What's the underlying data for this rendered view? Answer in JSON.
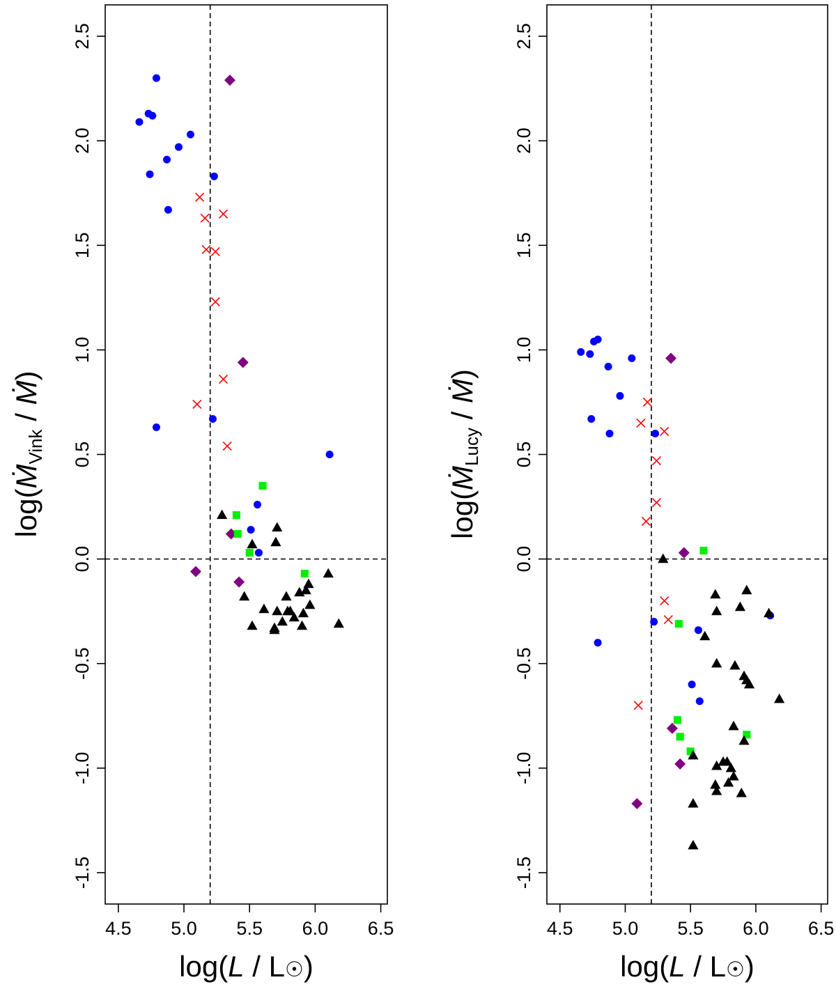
{
  "colors": {
    "blue_circle": "#0000ff",
    "red_cross": "#ff0000",
    "purple_diamond": "#800080",
    "green_square": "#00ee00",
    "black_triangle": "#000000"
  },
  "chart_data": [
    {
      "type": "scatter",
      "title": "",
      "xlabel": "log(L / L☉)",
      "ylabel": "log(Ṁ_Vink / Ṁ)",
      "ylabel_parts": {
        "prefix": "log(",
        "mdot": "M",
        "sub": "Vink",
        "mid": " / ",
        "suffix": ")"
      },
      "xlabel_parts": {
        "prefix": "log(",
        "L": "L",
        "mid": " / L",
        "suffix": ")"
      },
      "xlim": [
        4.4,
        6.55
      ],
      "ylim": [
        -1.65,
        2.65
      ],
      "xticks": [
        "4.5",
        "5.0",
        "5.5",
        "6.0",
        "6.5"
      ],
      "yticks": [
        "-1.5",
        "-1.0",
        "-0.5",
        "0.0",
        "0.5",
        "1.0",
        "1.5",
        "2.0",
        "2.5"
      ],
      "reference_lines": {
        "vertical_x": 5.2,
        "horizontal_y": 0.0
      },
      "grid": false,
      "series": [
        {
          "marker": "circle",
          "color": "#0000ff",
          "points": [
            [
              4.66,
              2.09
            ],
            [
              4.73,
              2.13
            ],
            [
              4.76,
              2.12
            ],
            [
              4.79,
              2.3
            ],
            [
              4.74,
              1.84
            ],
            [
              4.87,
              1.91
            ],
            [
              4.96,
              1.97
            ],
            [
              5.05,
              2.03
            ],
            [
              5.23,
              1.83
            ],
            [
              4.88,
              1.67
            ],
            [
              4.79,
              0.63
            ],
            [
              5.22,
              0.67
            ],
            [
              6.11,
              0.5
            ],
            [
              5.56,
              0.26
            ],
            [
              5.51,
              0.14
            ],
            [
              5.57,
              0.03
            ]
          ]
        },
        {
          "marker": "cross",
          "color": "#ff0000",
          "points": [
            [
              5.12,
              1.73
            ],
            [
              5.16,
              1.63
            ],
            [
              5.3,
              1.65
            ],
            [
              5.17,
              1.48
            ],
            [
              5.24,
              1.47
            ],
            [
              5.24,
              1.23
            ],
            [
              5.3,
              0.86
            ],
            [
              5.1,
              0.74
            ],
            [
              5.33,
              0.54
            ]
          ]
        },
        {
          "marker": "diamond",
          "color": "#800080",
          "points": [
            [
              5.35,
              2.29
            ],
            [
              5.45,
              0.94
            ],
            [
              5.36,
              0.12
            ],
            [
              5.09,
              -0.06
            ],
            [
              5.42,
              -0.11
            ]
          ]
        },
        {
          "marker": "square",
          "color": "#00ee00",
          "points": [
            [
              5.6,
              0.35
            ],
            [
              5.4,
              0.21
            ],
            [
              5.41,
              0.12
            ],
            [
              5.5,
              0.03
            ],
            [
              5.92,
              -0.07
            ]
          ]
        },
        {
          "marker": "triangle",
          "color": "#000000",
          "points": [
            [
              5.29,
              0.21
            ],
            [
              5.71,
              0.15
            ],
            [
              5.52,
              0.07
            ],
            [
              5.7,
              0.08
            ],
            [
              5.46,
              -0.18
            ],
            [
              5.52,
              -0.32
            ],
            [
              5.61,
              -0.24
            ],
            [
              5.69,
              -0.33
            ],
            [
              5.69,
              -0.34
            ],
            [
              5.71,
              -0.25
            ],
            [
              5.75,
              -0.3
            ],
            [
              5.78,
              -0.18
            ],
            [
              5.79,
              -0.25
            ],
            [
              5.81,
              -0.25
            ],
            [
              5.84,
              -0.28
            ],
            [
              5.88,
              -0.16
            ],
            [
              5.9,
              -0.32
            ],
            [
              5.91,
              -0.26
            ],
            [
              5.93,
              -0.15
            ],
            [
              5.95,
              -0.12
            ],
            [
              5.96,
              -0.22
            ],
            [
              6.1,
              -0.07
            ],
            [
              6.18,
              -0.31
            ]
          ]
        }
      ]
    },
    {
      "type": "scatter",
      "title": "",
      "xlabel": "log(L / L☉)",
      "ylabel": "log(Ṁ_Lucy / Ṁ)",
      "ylabel_parts": {
        "prefix": "log(",
        "mdot": "M",
        "sub": "Lucy",
        "mid": " / ",
        "suffix": ")"
      },
      "xlabel_parts": {
        "prefix": "log(",
        "L": "L",
        "mid": " / L",
        "suffix": ")"
      },
      "xlim": [
        4.4,
        6.55
      ],
      "ylim": [
        -1.65,
        2.65
      ],
      "xticks": [
        "4.5",
        "5.0",
        "5.5",
        "6.0",
        "6.5"
      ],
      "yticks": [
        "-1.5",
        "-1.0",
        "-0.5",
        "0.0",
        "0.5",
        "1.0",
        "1.5",
        "2.0",
        "2.5"
      ],
      "reference_lines": {
        "vertical_x": 5.2,
        "horizontal_y": 0.0
      },
      "grid": false,
      "series": [
        {
          "marker": "circle",
          "color": "#0000ff",
          "points": [
            [
              4.66,
              0.99
            ],
            [
              4.73,
              0.98
            ],
            [
              4.76,
              1.04
            ],
            [
              4.79,
              1.05
            ],
            [
              4.74,
              0.67
            ],
            [
              4.87,
              0.92
            ],
            [
              4.96,
              0.78
            ],
            [
              5.05,
              0.96
            ],
            [
              4.88,
              0.6
            ],
            [
              5.23,
              0.6
            ],
            [
              5.22,
              -0.3
            ],
            [
              4.79,
              -0.4
            ],
            [
              5.56,
              -0.34
            ],
            [
              5.51,
              -0.6
            ],
            [
              5.57,
              -0.68
            ],
            [
              6.11,
              -0.27
            ]
          ]
        },
        {
          "marker": "cross",
          "color": "#ff0000",
          "points": [
            [
              5.17,
              0.75
            ],
            [
              5.12,
              0.65
            ],
            [
              5.3,
              0.61
            ],
            [
              5.24,
              0.47
            ],
            [
              5.24,
              0.27
            ],
            [
              5.16,
              0.18
            ],
            [
              5.3,
              -0.2
            ],
            [
              5.33,
              -0.29
            ],
            [
              5.1,
              -0.7
            ]
          ]
        },
        {
          "marker": "diamond",
          "color": "#800080",
          "points": [
            [
              5.35,
              0.96
            ],
            [
              5.45,
              0.03
            ],
            [
              5.36,
              -0.81
            ],
            [
              5.42,
              -0.98
            ],
            [
              5.09,
              -1.17
            ]
          ]
        },
        {
          "marker": "square",
          "color": "#00ee00",
          "points": [
            [
              5.6,
              0.04
            ],
            [
              5.41,
              -0.31
            ],
            [
              5.4,
              -0.77
            ],
            [
              5.42,
              -0.85
            ],
            [
              5.5,
              -0.92
            ],
            [
              5.93,
              -0.84
            ]
          ]
        },
        {
          "marker": "triangle",
          "color": "#000000",
          "points": [
            [
              5.29,
              0.0
            ],
            [
              5.69,
              -0.17
            ],
            [
              5.7,
              -0.25
            ],
            [
              5.61,
              -0.37
            ],
            [
              5.7,
              -0.5
            ],
            [
              5.84,
              -0.51
            ],
            [
              5.88,
              -0.23
            ],
            [
              5.93,
              -0.15
            ],
            [
              5.91,
              -0.56
            ],
            [
              5.93,
              -0.58
            ],
            [
              5.95,
              -0.6
            ],
            [
              6.1,
              -0.26
            ],
            [
              6.18,
              -0.67
            ],
            [
              5.83,
              -0.8
            ],
            [
              5.91,
              -0.87
            ],
            [
              5.52,
              -0.94
            ],
            [
              5.7,
              -0.99
            ],
            [
              5.75,
              -0.97
            ],
            [
              5.78,
              -0.97
            ],
            [
              5.81,
              -1.0
            ],
            [
              5.83,
              -1.04
            ],
            [
              5.79,
              -1.07
            ],
            [
              5.69,
              -1.08
            ],
            [
              5.7,
              -1.11
            ],
            [
              5.89,
              -1.12
            ],
            [
              5.52,
              -1.17
            ],
            [
              5.52,
              -1.37
            ]
          ]
        }
      ]
    }
  ]
}
